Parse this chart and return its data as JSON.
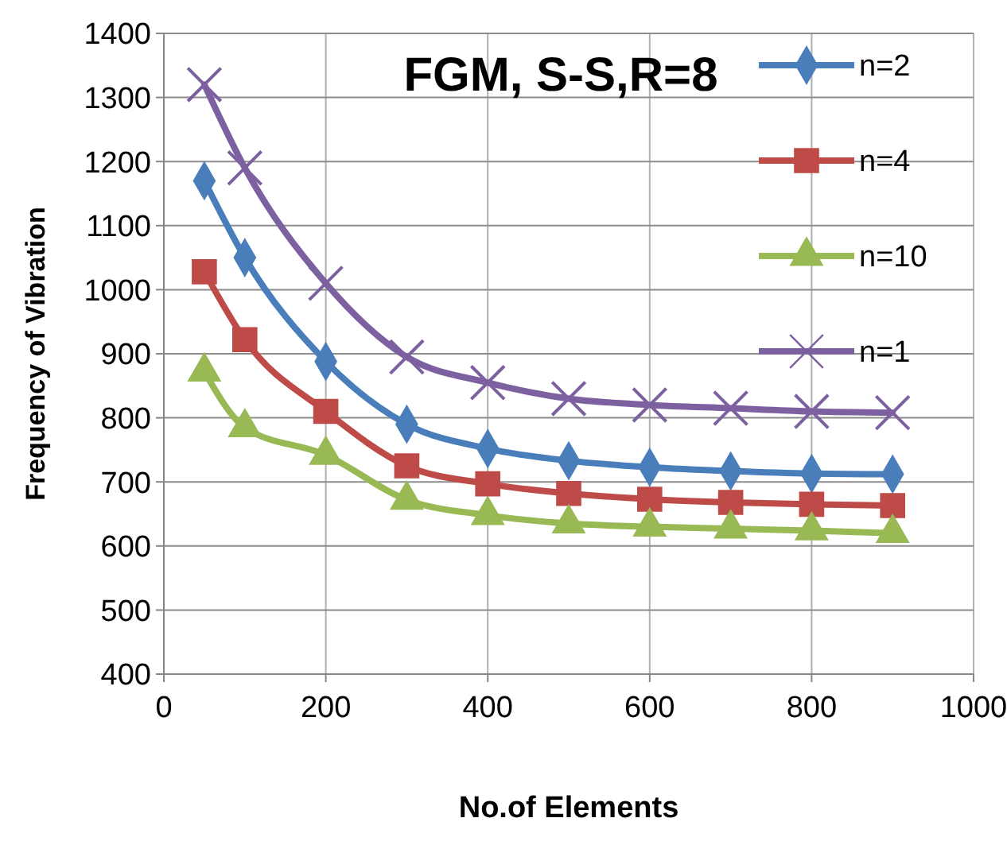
{
  "chart_data": {
    "type": "line",
    "title": "FGM, S-S,R=8",
    "xlabel": "No.of Elements",
    "ylabel": "Frequency of Vibration",
    "x": [
      50,
      100,
      200,
      300,
      400,
      500,
      600,
      700,
      800,
      900
    ],
    "series": [
      {
        "name": "n=2",
        "color": "#4a7ebb",
        "marker": "diamond",
        "values": [
          1170,
          1050,
          888,
          790,
          752,
          733,
          723,
          717,
          713,
          712
        ]
      },
      {
        "name": "n=4",
        "color": "#be4b48",
        "marker": "square",
        "values": [
          1028,
          922,
          810,
          725,
          697,
          682,
          673,
          668,
          665,
          663
        ]
      },
      {
        "name": "n=10",
        "color": "#98b954",
        "marker": "triangle",
        "values": [
          872,
          785,
          742,
          672,
          648,
          635,
          630,
          627,
          624,
          620
        ]
      },
      {
        "name": "n=1",
        "color": "#7d60a0",
        "marker": "cross",
        "values": [
          1320,
          1190,
          1010,
          895,
          855,
          830,
          820,
          815,
          810,
          808
        ]
      }
    ],
    "xlim": [
      0,
      1000
    ],
    "xticks": [
      0,
      200,
      400,
      600,
      800,
      1000
    ],
    "ylim": [
      400,
      1400
    ],
    "yticks": [
      400,
      500,
      600,
      700,
      800,
      900,
      1000,
      1100,
      1200,
      1300,
      1400
    ],
    "grid": true,
    "legend": "top right"
  }
}
